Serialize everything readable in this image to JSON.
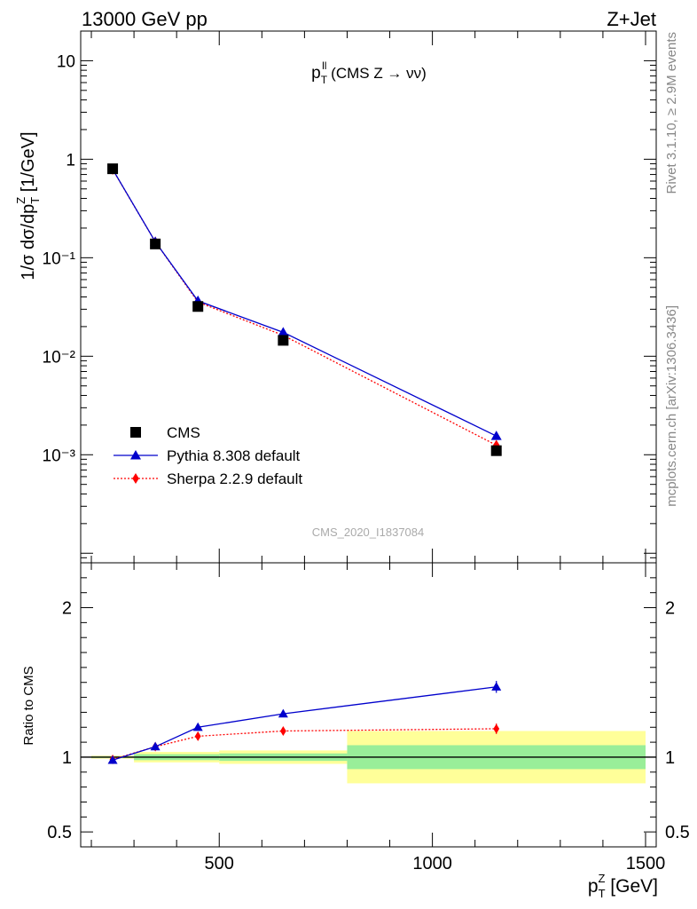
{
  "header": {
    "left": "13000 GeV pp",
    "right": "Z+Jet"
  },
  "side_labels": {
    "rivet": "Rivet 3.1.10, ≥ 2.9M events",
    "mcplots": "mcplots.cern.ch [arXiv:1306.3436]"
  },
  "watermark": "CMS_2020_I1837084",
  "chart_data": [
    {
      "type": "scatter",
      "title": "p_T^ll (CMS Z → νν)",
      "title_parts": {
        "main": "p",
        "sup": "ll",
        "sub": "T",
        "rest": " (CMS Z → νν)"
      },
      "ylabel": "1/σ dσ/dp_T^Z [1/GeV]",
      "ylabel_parts": {
        "pre": "1/σ dσ/dp",
        "sup": "Z",
        "sub": "T",
        "post": " [1/GeV]"
      },
      "yscale": "log",
      "xlim": [
        175,
        1525
      ],
      "ylim": [
        8e-05,
        20
      ],
      "ytick_labels": [
        "10",
        "1",
        "10⁻¹",
        "10⁻²",
        "10⁻³"
      ],
      "ytick_values": [
        10,
        1,
        0.1,
        0.01,
        0.001
      ],
      "legend_position": "bottom-left",
      "series": [
        {
          "name": "CMS",
          "marker": "square",
          "color": "#000000",
          "x": [
            250,
            350,
            450,
            650,
            1150
          ],
          "y": [
            0.8,
            0.138,
            0.032,
            0.0145,
            0.0011
          ]
        },
        {
          "name": "Pythia 8.308 default",
          "marker": "triangle",
          "line": "solid",
          "color": "#0000cc",
          "x": [
            250,
            350,
            450,
            650,
            1150
          ],
          "y": [
            0.79,
            0.145,
            0.0365,
            0.0175,
            0.00155
          ]
        },
        {
          "name": "Sherpa 2.2.9 default",
          "marker": "diamond",
          "line": "dotted",
          "color": "#ff0000",
          "x": [
            250,
            350,
            450,
            650,
            1150
          ],
          "y": [
            0.785,
            0.145,
            0.0355,
            0.0163,
            0.00125
          ]
        }
      ]
    },
    {
      "type": "scatter",
      "ylabel": "Ratio to CMS",
      "xlabel": "p_T^Z [GeV]",
      "xlabel_parts": {
        "main": "p",
        "sup": "Z",
        "sub": "T",
        "post": " [GeV]"
      },
      "xlim": [
        175,
        1525
      ],
      "ylim": [
        0.4,
        2.3
      ],
      "xtick_labels": [
        "500",
        "1000",
        "1500"
      ],
      "xtick_values": [
        500,
        1000,
        1500
      ],
      "ytick_labels": [
        "2",
        "1",
        "0.5"
      ],
      "ytick_values": [
        2,
        1,
        0.5
      ],
      "bands": [
        {
          "x0": 200,
          "x1": 300,
          "yellow": [
            0.99,
            1.01
          ],
          "green": [
            0.995,
            1.005
          ]
        },
        {
          "x0": 300,
          "x1": 500,
          "yellow": [
            0.965,
            1.035
          ],
          "green": [
            0.98,
            1.02
          ]
        },
        {
          "x0": 500,
          "x1": 800,
          "yellow": [
            0.955,
            1.045
          ],
          "green": [
            0.975,
            1.025
          ]
        },
        {
          "x0": 800,
          "x1": 1500,
          "yellow": [
            0.825,
            1.175
          ],
          "green": [
            0.92,
            1.08
          ]
        }
      ],
      "series": [
        {
          "name": "Pythia 8.308 default",
          "color": "#0000cc",
          "marker": "triangle",
          "line": "solid",
          "x": [
            250,
            350,
            450,
            650,
            1150
          ],
          "y": [
            0.98,
            1.07,
            1.2,
            1.29,
            1.47
          ],
          "err": [
            0.01,
            0.01,
            0.01,
            0.015,
            0.04
          ]
        },
        {
          "name": "Sherpa 2.2.9 default",
          "color": "#ff0000",
          "marker": "diamond",
          "line": "dotted",
          "x": [
            250,
            350,
            450,
            650,
            1150
          ],
          "y": [
            0.985,
            1.07,
            1.14,
            1.175,
            1.19
          ],
          "err": [
            0.01,
            0.01,
            0.01,
            0.012,
            0.035
          ]
        }
      ]
    }
  ]
}
